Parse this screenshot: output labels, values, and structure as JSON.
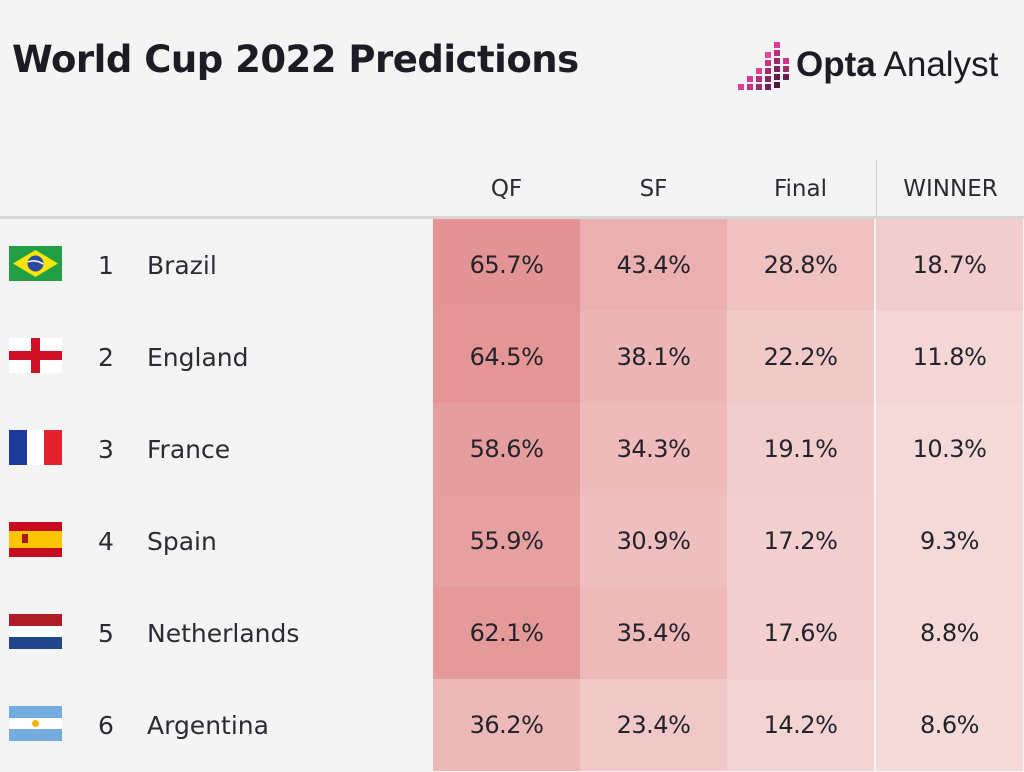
{
  "title": "World Cup 2022 Predictions",
  "logo": {
    "name_bold": "Opta",
    "name_light": " Analyst",
    "icon": "opta-bars-icon"
  },
  "colors": {
    "background": "#f4f4f4",
    "heat_low": "#f5dfdf",
    "heat_high": "#e39a9a"
  },
  "chart_data": {
    "type": "table",
    "columns": [
      "QF",
      "SF",
      "Final",
      "WINNER"
    ],
    "rows": [
      {
        "rank": "1",
        "team": "Brazil",
        "flag": "brazil-flag-icon",
        "values": [
          "65.7%",
          "43.4%",
          "28.8%",
          "18.7%"
        ],
        "numeric": [
          65.7,
          43.4,
          28.8,
          18.7
        ]
      },
      {
        "rank": "2",
        "team": "England",
        "flag": "england-flag-icon",
        "values": [
          "64.5%",
          "38.1%",
          "22.2%",
          "11.8%"
        ],
        "numeric": [
          64.5,
          38.1,
          22.2,
          11.8
        ]
      },
      {
        "rank": "3",
        "team": "France",
        "flag": "france-flag-icon",
        "values": [
          "58.6%",
          "34.3%",
          "19.1%",
          "10.3%"
        ],
        "numeric": [
          58.6,
          34.3,
          19.1,
          10.3
        ]
      },
      {
        "rank": "4",
        "team": "Spain",
        "flag": "spain-flag-icon",
        "values": [
          "55.9%",
          "30.9%",
          "17.2%",
          "9.3%"
        ],
        "numeric": [
          55.9,
          30.9,
          17.2,
          9.3
        ]
      },
      {
        "rank": "5",
        "team": "Netherlands",
        "flag": "netherlands-flag-icon",
        "values": [
          "62.1%",
          "35.4%",
          "17.6%",
          "8.8%"
        ],
        "numeric": [
          62.1,
          35.4,
          17.6,
          8.8
        ]
      },
      {
        "rank": "6",
        "team": "Argentina",
        "flag": "argentina-flag-icon",
        "values": [
          "36.2%",
          "23.4%",
          "14.2%",
          "8.6%"
        ],
        "numeric": [
          36.2,
          23.4,
          14.2,
          8.6
        ]
      }
    ]
  }
}
